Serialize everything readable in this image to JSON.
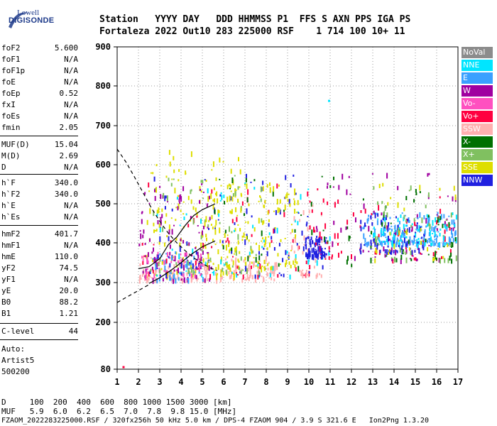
{
  "logo": {
    "top": "Lowell",
    "bottom": "DIGISONDE"
  },
  "header": {
    "line1": "Station   YYYY DAY   DDD HHMMSS P1  FFS S AXN PPS IGA PS",
    "line2": "Fortaleza 2022 Out10 283 225000 RSF    1 714 100 10+ 11"
  },
  "params": [
    {
      "label": "foF2",
      "value": "5.600"
    },
    {
      "label": "foF1",
      "value": "N/A"
    },
    {
      "label": "foF1p",
      "value": "N/A"
    },
    {
      "label": "foE",
      "value": "N/A"
    },
    {
      "label": "foEp",
      "value": "0.52"
    },
    {
      "label": "fxI",
      "value": "N/A"
    },
    {
      "label": "foEs",
      "value": "N/A"
    },
    {
      "label": "fmin",
      "value": "2.05"
    },
    {
      "label": "MUF(D)",
      "value": "15.04"
    },
    {
      "label": "M(D)",
      "value": "2.69"
    },
    {
      "label": "D",
      "value": "N/A"
    },
    {
      "label": "h`F",
      "value": "340.0"
    },
    {
      "label": "h`F2",
      "value": "340.0"
    },
    {
      "label": "h`E",
      "value": "N/A"
    },
    {
      "label": "h`Es",
      "value": "N/A"
    },
    {
      "label": "hmF2",
      "value": "401.7"
    },
    {
      "label": "hmF1",
      "value": "N/A"
    },
    {
      "label": "hmE",
      "value": "110.0"
    },
    {
      "label": "yF2",
      "value": "74.5"
    },
    {
      "label": "yF1",
      "value": "N/A"
    },
    {
      "label": "yE",
      "value": "20.0"
    },
    {
      "label": "B0",
      "value": "88.2"
    },
    {
      "label": "B1",
      "value": "1.21"
    },
    {
      "label": "C-level",
      "value": "44"
    }
  ],
  "auto": {
    "line1": "Auto:",
    "line2": "Artist5",
    "line3": "500200"
  },
  "legend": [
    {
      "label": "NoVal",
      "color": "#8c8c8c"
    },
    {
      "label": "NNE",
      "color": "#00e5ff"
    },
    {
      "label": "E",
      "color": "#3aa0ff"
    },
    {
      "label": "W",
      "color": "#a000a0"
    },
    {
      "label": "Vo-",
      "color": "#ff50c0"
    },
    {
      "label": "Vo+",
      "color": "#ff0040"
    },
    {
      "label": "SSW",
      "color": "#ffb0b0"
    },
    {
      "label": "X-",
      "color": "#007000"
    },
    {
      "label": "X+",
      "color": "#80c060"
    },
    {
      "label": "SSE",
      "color": "#dede00"
    },
    {
      "label": "NNW",
      "color": "#2020e0"
    }
  ],
  "footer": {
    "line1": "D     100  200  400  600  800 1000 1500 3000 [km]",
    "line2": "MUF   5.9  6.0  6.2  6.5  7.0  7.8  9.8 15.0 [MHz]",
    "line3": "FZAOM_2022283225000.RSF / 320fx256h 50 kHz 5.0 km / DPS-4 FZAOM 904 / 3.9 S 321.6 E   Ion2Png 1.3.20"
  },
  "chart_data": {
    "type": "scatter",
    "xlabel": "",
    "ylabel": "",
    "xlim": [
      1,
      17
    ],
    "ylim": [
      80,
      900
    ],
    "x_ticks": [
      1,
      2,
      3,
      4,
      5,
      6,
      7,
      8,
      9,
      10,
      11,
      12,
      13,
      14,
      15,
      16,
      17
    ],
    "y_ticks": [
      80,
      200,
      300,
      400,
      500,
      600,
      700,
      800,
      900
    ],
    "grid": true,
    "legend_position": "right",
    "clusters": [
      {
        "name": "SSW",
        "x": [
          2.0,
          8.5
        ],
        "y": [
          310,
          370
        ],
        "n": 170
      },
      {
        "name": "SSE",
        "x": [
          2.3,
          6.8
        ],
        "y": [
          320,
          640
        ],
        "n": 150
      },
      {
        "name": "W",
        "x": [
          2.0,
          5.5
        ],
        "y": [
          310,
          560
        ],
        "n": 110
      },
      {
        "name": "E",
        "x": [
          2.5,
          5.0
        ],
        "y": [
          310,
          380
        ],
        "n": 40
      },
      {
        "name": "NNE",
        "x": [
          2.8,
          11.0
        ],
        "y": [
          320,
          560
        ],
        "n": 60
      },
      {
        "name": "Vo-",
        "x": [
          2.0,
          5.0
        ],
        "y": [
          320,
          380
        ],
        "n": 40
      },
      {
        "name": "Vo+",
        "x": [
          2.0,
          11.0
        ],
        "y": [
          320,
          560
        ],
        "n": 60
      },
      {
        "name": "NNW",
        "x": [
          2.5,
          10.8
        ],
        "y": [
          320,
          580
        ],
        "n": 80
      },
      {
        "name": "X+",
        "x": [
          2.5,
          8.0
        ],
        "y": [
          330,
          580
        ],
        "n": 60
      },
      {
        "name": "X-",
        "x": [
          5.5,
          12.0
        ],
        "y": [
          340,
          580
        ],
        "n": 40
      },
      {
        "name": "SSE",
        "x": [
          5.0,
          9.5
        ],
        "y": [
          340,
          560
        ],
        "n": 140
      },
      {
        "name": "SSW",
        "x": [
          9.0,
          10.8
        ],
        "y": [
          320,
          500
        ],
        "n": 40
      },
      {
        "name": "NNW",
        "x": [
          9.8,
          10.8
        ],
        "y": [
          370,
          420
        ],
        "n": 80
      },
      {
        "name": "Vo+",
        "x": [
          10.0,
          16.9
        ],
        "y": [
          360,
          520
        ],
        "n": 70
      },
      {
        "name": "W",
        "x": [
          10.0,
          16.9
        ],
        "y": [
          360,
          580
        ],
        "n": 70
      },
      {
        "name": "E",
        "x": [
          12.5,
          16.9
        ],
        "y": [
          400,
          480
        ],
        "n": 150
      },
      {
        "name": "NNE",
        "x": [
          13.0,
          16.9
        ],
        "y": [
          400,
          480
        ],
        "n": 80
      },
      {
        "name": "NNW",
        "x": [
          12.3,
          15.5
        ],
        "y": [
          380,
          480
        ],
        "n": 70
      },
      {
        "name": "X-",
        "x": [
          12.5,
          16.9
        ],
        "y": [
          360,
          560
        ],
        "n": 40
      },
      {
        "name": "X+",
        "x": [
          13.0,
          16.9
        ],
        "y": [
          360,
          560
        ],
        "n": 40
      },
      {
        "name": "SSE",
        "x": [
          13.0,
          16.9
        ],
        "y": [
          360,
          560
        ],
        "n": 30
      }
    ],
    "isolated_points": [
      {
        "name": "Vo+",
        "x": 1.25,
        "y": 88
      },
      {
        "name": "NNE",
        "x": 10.9,
        "y": 765
      }
    ],
    "traces": [
      {
        "style": "dashed",
        "x": [
          1.0,
          1.4,
          1.8,
          2.2,
          2.6,
          3.0,
          3.4,
          3.8,
          4.2,
          4.6,
          5.0,
          5.4,
          5.7
        ],
        "y": [
          640,
          608,
          570,
          530,
          490,
          455,
          425,
          400,
          380,
          362,
          348,
          336,
          330
        ]
      },
      {
        "style": "dashed",
        "x": [
          1.0,
          1.5,
          2.0,
          2.5
        ],
        "y": [
          250,
          265,
          280,
          295
        ]
      },
      {
        "style": "solid",
        "x": [
          2.5,
          3.0,
          3.5,
          4.0,
          4.5,
          5.0,
          5.6
        ],
        "y": [
          298,
          312,
          330,
          350,
          372,
          390,
          405
        ]
      },
      {
        "style": "solid",
        "x": [
          2.0,
          2.5,
          3.0,
          3.4,
          3.8,
          4.2,
          4.6,
          5.0,
          5.4,
          5.6
        ],
        "y": [
          335,
          340,
          360,
          395,
          415,
          445,
          470,
          485,
          495,
          500
        ]
      }
    ]
  }
}
